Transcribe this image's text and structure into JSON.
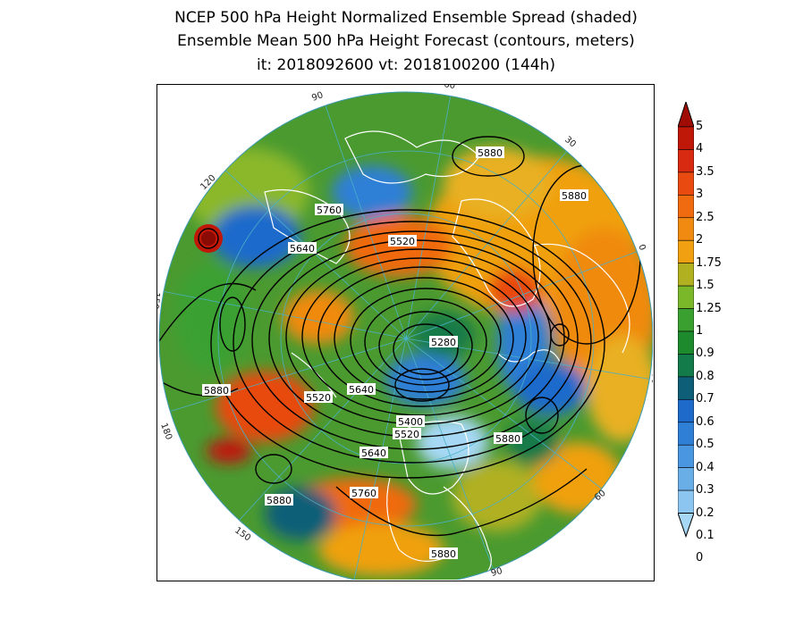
{
  "title": {
    "line1": "NCEP 500 hPa Height Normalized Ensemble Spread (shaded)",
    "line2": "Ensemble Mean 500 hPa Height Forecast (contours, meters)",
    "line3": "it: 2018092600      vt: 2018100200 (144h)"
  },
  "colors": {
    "ocean_base": "#3a8a3a",
    "coast": "#ffffff",
    "contour": "#000000",
    "meridian": "#4ab0c8"
  },
  "colorbar": {
    "levels": [
      "0",
      "0.1",
      "0.2",
      "0.3",
      "0.4",
      "0.5",
      "0.6",
      "0.7",
      "0.8",
      "0.9",
      "1",
      "1.25",
      "1.5",
      "1.75",
      "2",
      "2.5",
      "3",
      "3.5",
      "4",
      "5"
    ],
    "colors": [
      "#a6d8f5",
      "#8cc6f0",
      "#6aaee8",
      "#4a96e0",
      "#2f7fd6",
      "#1e6acb",
      "#0f5e78",
      "#137a4a",
      "#1e8a2e",
      "#3aa030",
      "#7ab82a",
      "#b0b020",
      "#f0a010",
      "#f08a10",
      "#f06a10",
      "#e84a10",
      "#d82a10",
      "#c01808",
      "#a00c04"
    ]
  },
  "longitude_labels": [
    "60",
    "30",
    "0",
    "30",
    "60",
    "90",
    "120",
    "150",
    "180",
    "150",
    "120",
    "90"
  ],
  "contour_labels": [
    "5880",
    "5880",
    "5760",
    "5520",
    "5640",
    "5280",
    "5880",
    "5520",
    "5640",
    "5400",
    "5520",
    "5880",
    "5640",
    "5760",
    "5880",
    "5880"
  ]
}
